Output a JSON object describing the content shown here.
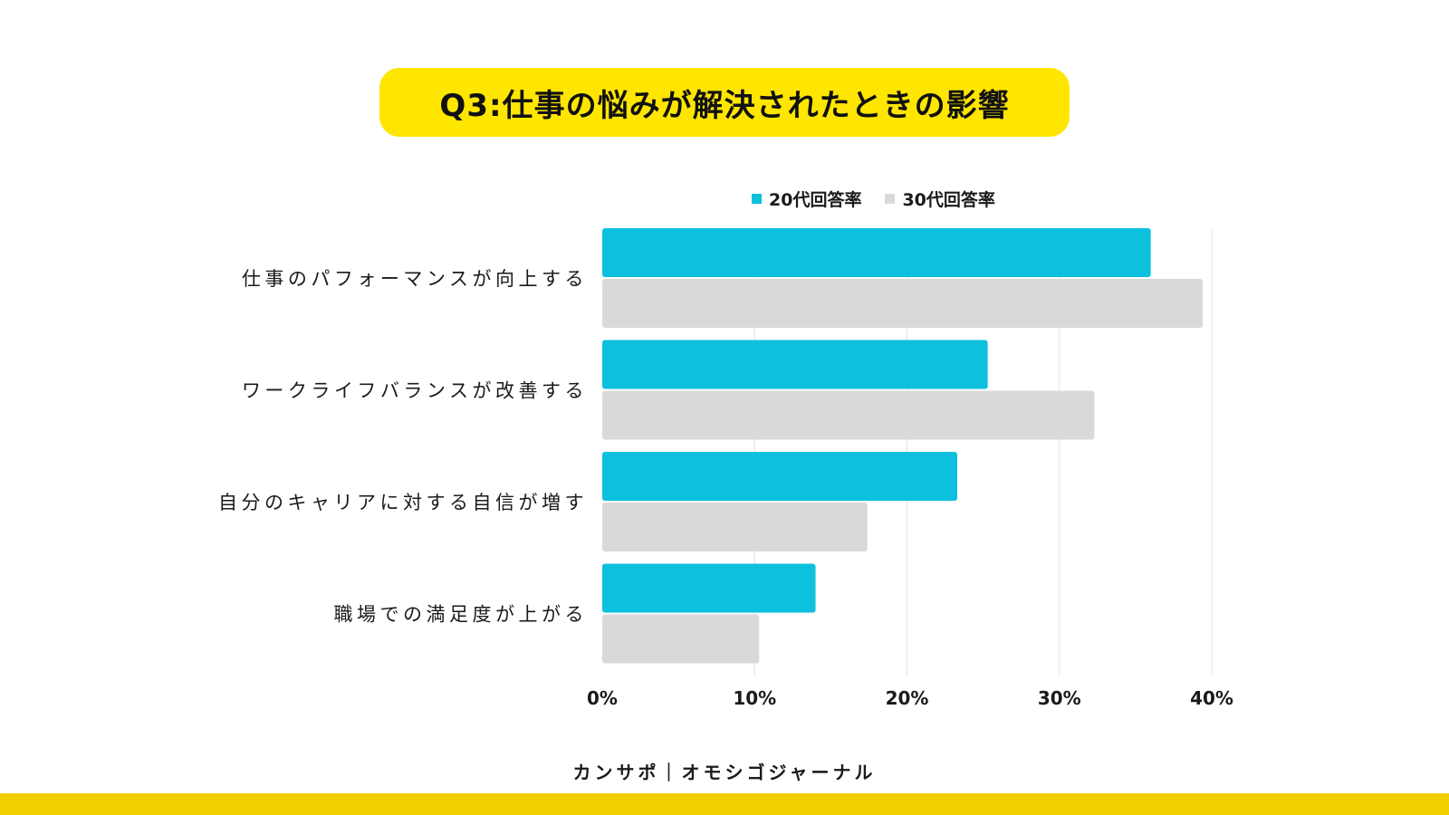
{
  "title": "Q3:仕事の悩みが解決されたときの影響",
  "colors": {
    "title_bg": "#FFE600",
    "series_20s": "#0DC0DE",
    "series_30s": "#D9D9D9",
    "gridline": "#E3E3E3",
    "footer_bar": "#F0CF00"
  },
  "chart_data": {
    "type": "bar",
    "orientation": "horizontal",
    "categories": [
      "仕事のパフォーマンスが向上する",
      "ワークライフバランスが改善する",
      "自分のキャリアに対する自信が増す",
      "職場での満足度が上がる"
    ],
    "series": [
      {
        "name": "20代回答率",
        "values": [
          36,
          25.3,
          23.3,
          14
        ]
      },
      {
        "name": "30代回答率",
        "values": [
          39.4,
          32.3,
          17.4,
          10.3
        ]
      }
    ],
    "xlim": [
      0,
      40
    ],
    "xticks": [
      0,
      10,
      20,
      30,
      40
    ],
    "tick_format": "{v}%",
    "grid": true,
    "legend_position": "top"
  },
  "footer": {
    "text": "カンサポ｜オモシゴジャーナル"
  }
}
